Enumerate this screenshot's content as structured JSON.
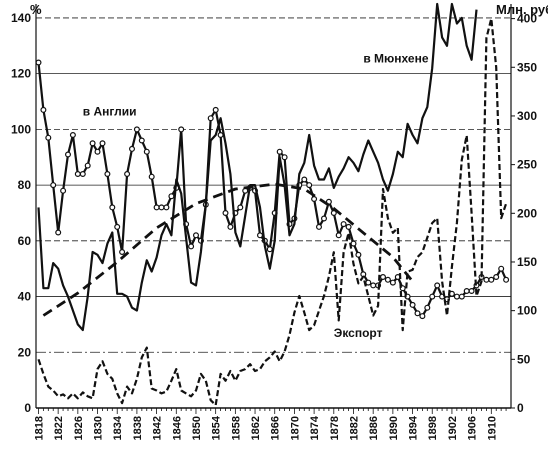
{
  "chart_data": {
    "type": "line",
    "left_axis": {
      "unit": "%",
      "range": [
        0,
        145
      ],
      "ticks": [
        0,
        20,
        40,
        60,
        80,
        100,
        120,
        140
      ]
    },
    "right_axis": {
      "unit": "Млн. руб.",
      "range": [
        0,
        415
      ],
      "ticks": [
        0,
        50,
        100,
        150,
        200,
        250,
        300,
        350,
        400
      ]
    },
    "x_axis": {
      "range": [
        1817.5,
        1914
      ],
      "ticks": [
        1818,
        1822,
        1826,
        1830,
        1834,
        1838,
        1842,
        1846,
        1850,
        1854,
        1858,
        1862,
        1866,
        1870,
        1874,
        1878,
        1882,
        1886,
        1890,
        1894,
        1898,
        1902,
        1906,
        1910
      ],
      "tick_label_orientation": "vertical"
    },
    "grid": "horizontal-lines",
    "series": [
      {
        "name": "в Англии",
        "axis": "left",
        "style": "solid-with-circle-markers",
        "points": [
          [
            1818,
            124
          ],
          [
            1819,
            107
          ],
          [
            1820,
            97
          ],
          [
            1821,
            80
          ],
          [
            1822,
            63
          ],
          [
            1823,
            78
          ],
          [
            1824,
            91
          ],
          [
            1825,
            98
          ],
          [
            1826,
            84
          ],
          [
            1827,
            84
          ],
          [
            1828,
            87
          ],
          [
            1829,
            95
          ],
          [
            1830,
            92
          ],
          [
            1831,
            95
          ],
          [
            1832,
            84
          ],
          [
            1833,
            72
          ],
          [
            1834,
            65
          ],
          [
            1835,
            56
          ],
          [
            1836,
            84
          ],
          [
            1837,
            93
          ],
          [
            1838,
            100
          ],
          [
            1839,
            96
          ],
          [
            1840,
            92
          ],
          [
            1841,
            83
          ],
          [
            1842,
            72
          ],
          [
            1843,
            72
          ],
          [
            1844,
            72
          ],
          [
            1845,
            76
          ],
          [
            1846,
            79
          ],
          [
            1847,
            100
          ],
          [
            1848,
            66
          ],
          [
            1849,
            58
          ],
          [
            1850,
            62
          ],
          [
            1851,
            60
          ],
          [
            1852,
            73
          ],
          [
            1853,
            104
          ],
          [
            1854,
            107
          ],
          [
            1855,
            98
          ],
          [
            1856,
            70
          ],
          [
            1857,
            65
          ],
          [
            1858,
            70
          ],
          [
            1859,
            72
          ],
          [
            1860,
            78
          ],
          [
            1861,
            79
          ],
          [
            1862,
            78
          ],
          [
            1863,
            62
          ],
          [
            1864,
            60
          ],
          [
            1865,
            57
          ],
          [
            1866,
            70
          ],
          [
            1867,
            92
          ],
          [
            1868,
            90
          ],
          [
            1869,
            66
          ],
          [
            1870,
            68
          ],
          [
            1871,
            80
          ],
          [
            1872,
            82
          ],
          [
            1873,
            80
          ],
          [
            1874,
            75
          ],
          [
            1875,
            65
          ],
          [
            1876,
            68
          ],
          [
            1877,
            74
          ],
          [
            1878,
            70
          ],
          [
            1879,
            62
          ],
          [
            1880,
            66
          ],
          [
            1881,
            65
          ],
          [
            1882,
            59
          ],
          [
            1883,
            55
          ],
          [
            1884,
            48
          ],
          [
            1885,
            45
          ],
          [
            1886,
            44
          ],
          [
            1887,
            44
          ],
          [
            1888,
            47
          ],
          [
            1889,
            46
          ],
          [
            1890,
            45
          ],
          [
            1891,
            47
          ],
          [
            1892,
            43
          ],
          [
            1893,
            40
          ],
          [
            1894,
            37
          ],
          [
            1895,
            34
          ],
          [
            1896,
            33
          ],
          [
            1897,
            36
          ],
          [
            1898,
            40
          ],
          [
            1899,
            44
          ],
          [
            1900,
            40
          ],
          [
            1901,
            39
          ],
          [
            1902,
            41
          ],
          [
            1903,
            40
          ],
          [
            1904,
            40
          ],
          [
            1905,
            42
          ],
          [
            1906,
            42
          ],
          [
            1907,
            44
          ],
          [
            1908,
            47
          ],
          [
            1909,
            46
          ],
          [
            1910,
            46
          ],
          [
            1911,
            47
          ],
          [
            1912,
            50
          ],
          [
            1913,
            46
          ]
        ]
      },
      {
        "name": "в Мюнхене",
        "axis": "left",
        "style": "solid",
        "points": [
          [
            1818,
            72
          ],
          [
            1819,
            43
          ],
          [
            1820,
            43
          ],
          [
            1821,
            52
          ],
          [
            1822,
            50
          ],
          [
            1823,
            44
          ],
          [
            1824,
            40
          ],
          [
            1825,
            35
          ],
          [
            1826,
            30
          ],
          [
            1827,
            28
          ],
          [
            1828,
            40
          ],
          [
            1829,
            56
          ],
          [
            1830,
            55
          ],
          [
            1831,
            52
          ],
          [
            1832,
            59
          ],
          [
            1833,
            63
          ],
          [
            1834,
            41
          ],
          [
            1835,
            41
          ],
          [
            1836,
            40
          ],
          [
            1837,
            36
          ],
          [
            1838,
            35
          ],
          [
            1839,
            45
          ],
          [
            1840,
            53
          ],
          [
            1841,
            49
          ],
          [
            1842,
            54
          ],
          [
            1843,
            62
          ],
          [
            1844,
            66
          ],
          [
            1845,
            62
          ],
          [
            1846,
            82
          ],
          [
            1847,
            77
          ],
          [
            1848,
            61
          ],
          [
            1849,
            45
          ],
          [
            1850,
            44
          ],
          [
            1851,
            56
          ],
          [
            1852,
            73
          ],
          [
            1853,
            96
          ],
          [
            1854,
            98
          ],
          [
            1855,
            104
          ],
          [
            1856,
            95
          ],
          [
            1857,
            84
          ],
          [
            1858,
            63
          ],
          [
            1859,
            58
          ],
          [
            1860,
            69
          ],
          [
            1861,
            80
          ],
          [
            1862,
            80
          ],
          [
            1863,
            72
          ],
          [
            1864,
            58
          ],
          [
            1865,
            50
          ],
          [
            1866,
            60
          ],
          [
            1867,
            90
          ],
          [
            1868,
            80
          ],
          [
            1869,
            62
          ],
          [
            1870,
            66
          ],
          [
            1871,
            84
          ],
          [
            1872,
            88
          ],
          [
            1873,
            98
          ],
          [
            1874,
            87
          ],
          [
            1875,
            82
          ],
          [
            1876,
            82
          ],
          [
            1877,
            86
          ],
          [
            1878,
            79
          ],
          [
            1879,
            83
          ],
          [
            1880,
            86
          ],
          [
            1881,
            90
          ],
          [
            1882,
            88
          ],
          [
            1883,
            85
          ],
          [
            1884,
            91
          ],
          [
            1885,
            96
          ],
          [
            1886,
            92
          ],
          [
            1887,
            88
          ],
          [
            1888,
            82
          ],
          [
            1889,
            78
          ],
          [
            1890,
            84
          ],
          [
            1891,
            92
          ],
          [
            1892,
            90
          ],
          [
            1893,
            102
          ],
          [
            1894,
            98
          ],
          [
            1895,
            95
          ],
          [
            1896,
            104
          ],
          [
            1897,
            108
          ],
          [
            1898,
            122
          ],
          [
            1899,
            145
          ],
          [
            1900,
            133
          ],
          [
            1901,
            130
          ],
          [
            1902,
            145
          ],
          [
            1903,
            138
          ],
          [
            1904,
            140
          ],
          [
            1905,
            130
          ],
          [
            1906,
            125
          ],
          [
            1907,
            143
          ]
        ]
      },
      {
        "name": "Экспорт",
        "axis": "right",
        "style": "dashed",
        "points": [
          [
            1818,
            50
          ],
          [
            1819,
            35
          ],
          [
            1820,
            22
          ],
          [
            1821,
            18
          ],
          [
            1822,
            12
          ],
          [
            1823,
            14
          ],
          [
            1824,
            10
          ],
          [
            1825,
            15
          ],
          [
            1826,
            10
          ],
          [
            1827,
            16
          ],
          [
            1828,
            12
          ],
          [
            1829,
            10
          ],
          [
            1830,
            40
          ],
          [
            1831,
            48
          ],
          [
            1832,
            35
          ],
          [
            1833,
            30
          ],
          [
            1834,
            15
          ],
          [
            1835,
            5
          ],
          [
            1836,
            22
          ],
          [
            1837,
            15
          ],
          [
            1838,
            30
          ],
          [
            1839,
            52
          ],
          [
            1840,
            62
          ],
          [
            1841,
            20
          ],
          [
            1842,
            18
          ],
          [
            1843,
            15
          ],
          [
            1844,
            17
          ],
          [
            1845,
            28
          ],
          [
            1846,
            40
          ],
          [
            1847,
            18
          ],
          [
            1848,
            15
          ],
          [
            1849,
            12
          ],
          [
            1850,
            18
          ],
          [
            1851,
            35
          ],
          [
            1852,
            28
          ],
          [
            1853,
            8
          ],
          [
            1854,
            3
          ],
          [
            1855,
            35
          ],
          [
            1856,
            28
          ],
          [
            1857,
            38
          ],
          [
            1858,
            28
          ],
          [
            1859,
            38
          ],
          [
            1860,
            40
          ],
          [
            1861,
            45
          ],
          [
            1862,
            38
          ],
          [
            1863,
            40
          ],
          [
            1864,
            48
          ],
          [
            1865,
            52
          ],
          [
            1866,
            58
          ],
          [
            1867,
            48
          ],
          [
            1868,
            58
          ],
          [
            1869,
            75
          ],
          [
            1870,
            98
          ],
          [
            1871,
            115
          ],
          [
            1872,
            98
          ],
          [
            1873,
            80
          ],
          [
            1874,
            85
          ],
          [
            1875,
            100
          ],
          [
            1876,
            115
          ],
          [
            1877,
            135
          ],
          [
            1878,
            160
          ],
          [
            1879,
            90
          ],
          [
            1880,
            160
          ],
          [
            1881,
            180
          ],
          [
            1882,
            148
          ],
          [
            1883,
            128
          ],
          [
            1884,
            135
          ],
          [
            1885,
            115
          ],
          [
            1886,
            95
          ],
          [
            1887,
            105
          ],
          [
            1888,
            225
          ],
          [
            1889,
            195
          ],
          [
            1890,
            180
          ],
          [
            1891,
            185
          ],
          [
            1892,
            80
          ],
          [
            1893,
            140
          ],
          [
            1894,
            142
          ],
          [
            1895,
            155
          ],
          [
            1896,
            160
          ],
          [
            1897,
            175
          ],
          [
            1898,
            190
          ],
          [
            1899,
            195
          ],
          [
            1900,
            130
          ],
          [
            1901,
            95
          ],
          [
            1902,
            145
          ],
          [
            1903,
            190
          ],
          [
            1904,
            255
          ],
          [
            1905,
            280
          ],
          [
            1906,
            200
          ],
          [
            1907,
            115
          ],
          [
            1908,
            130
          ],
          [
            1909,
            380
          ],
          [
            1910,
            400
          ],
          [
            1911,
            350
          ],
          [
            1912,
            195
          ],
          [
            1913,
            210
          ]
        ]
      },
      {
        "name": "",
        "axis": "right",
        "style": "thick-dashed-trend",
        "points": [
          [
            1819,
            95
          ],
          [
            1826,
            118
          ],
          [
            1834,
            150
          ],
          [
            1842,
            185
          ],
          [
            1850,
            210
          ],
          [
            1858,
            225
          ],
          [
            1866,
            230
          ],
          [
            1872,
            225
          ],
          [
            1878,
            205
          ],
          [
            1884,
            180
          ],
          [
            1890,
            155
          ],
          [
            1894,
            130
          ]
        ]
      }
    ],
    "annotations": [
      {
        "text": "в Англии",
        "series_index": 0,
        "anchor": [
          1827,
          105
        ]
      },
      {
        "text": "в Мюнхене",
        "series_index": 1,
        "anchor": [
          1884,
          124
        ]
      },
      {
        "text": "Экспорт",
        "series_index": 2,
        "anchor": [
          1878,
          73
        ]
      }
    ]
  }
}
